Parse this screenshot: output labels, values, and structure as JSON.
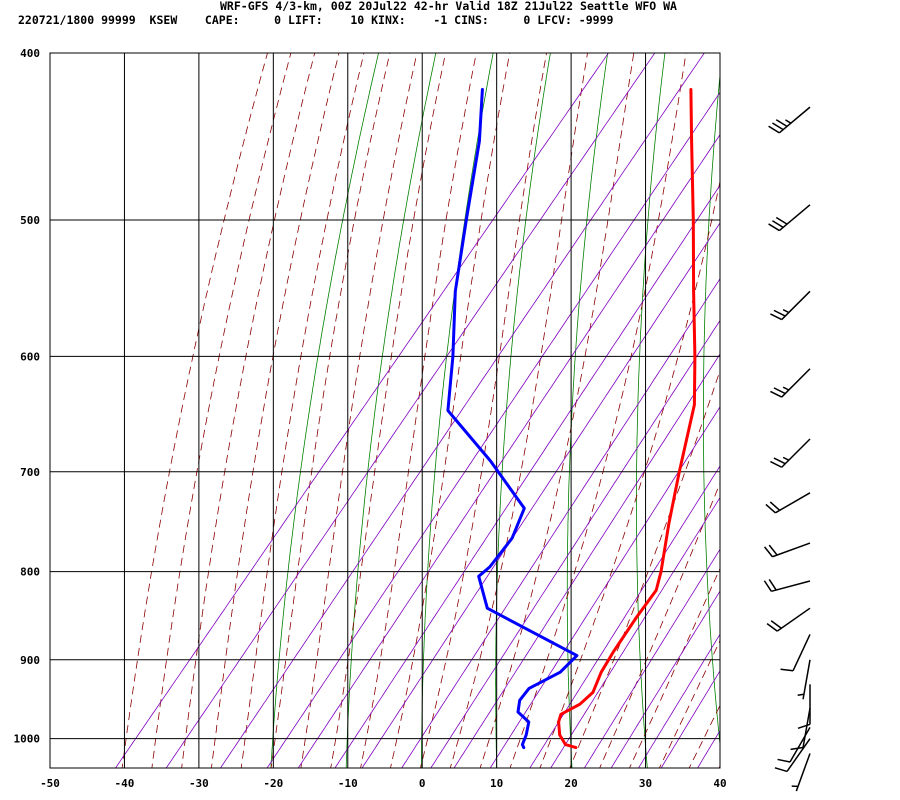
{
  "header": {
    "line1": "WRF-GFS 4/3-km, 00Z 20Jul22 42-hr Valid 18Z 21Jul22 Seattle WFO WA",
    "line2": "220721/1800 99999  KSEW    CAPE:     0 LIFT:    10 KINX:    -1 CINS:     0 LFCV: -9999"
  },
  "colors": {
    "temperature": "#ff0000",
    "dewpoint": "#0000ff",
    "dry_adiabat": "#008000",
    "moist_adiabat": "#8b0000",
    "mixing_ratio": "#8000c0",
    "grid": "#000000",
    "wind_barb": "#000000"
  },
  "chart_data": {
    "type": "skew-t sounding",
    "xlim": [
      -50,
      40
    ],
    "ylim_hpa": [
      1040,
      400
    ],
    "x_ticks": [
      -50,
      -40,
      -30,
      -20,
      -10,
      0,
      10,
      20,
      30,
      40
    ],
    "y_ticks": [
      400,
      500,
      600,
      700,
      800,
      900,
      1000
    ],
    "grid": true,
    "series": [
      {
        "kind": "temperature",
        "points": [
          {
            "p": 1012,
            "t": 18.5
          },
          {
            "p": 1008,
            "t": 16.8
          },
          {
            "p": 995,
            "t": 15.0
          },
          {
            "p": 978,
            "t": 13.5
          },
          {
            "p": 968,
            "t": 13.0
          },
          {
            "p": 955,
            "t": 14.5
          },
          {
            "p": 940,
            "t": 15.0
          },
          {
            "p": 915,
            "t": 14.0
          },
          {
            "p": 890,
            "t": 13.5
          },
          {
            "p": 850,
            "t": 13.0
          },
          {
            "p": 820,
            "t": 12.8
          },
          {
            "p": 800,
            "t": 11.5
          },
          {
            "p": 750,
            "t": 7.5
          },
          {
            "p": 700,
            "t": 3.5
          },
          {
            "p": 640,
            "t": -1.5
          },
          {
            "p": 600,
            "t": -6.5
          },
          {
            "p": 550,
            "t": -13.5
          },
          {
            "p": 500,
            "t": -21.0
          },
          {
            "p": 450,
            "t": -29.5
          },
          {
            "p": 420,
            "t": -35.0
          }
        ]
      },
      {
        "kind": "dewpoint",
        "points": [
          {
            "p": 1012,
            "t": 11.5
          },
          {
            "p": 1008,
            "t": 11.0
          },
          {
            "p": 995,
            "t": 10.5
          },
          {
            "p": 978,
            "t": 9.5
          },
          {
            "p": 965,
            "t": 7.0
          },
          {
            "p": 950,
            "t": 6.0
          },
          {
            "p": 935,
            "t": 6.0
          },
          {
            "p": 915,
            "t": 8.5
          },
          {
            "p": 895,
            "t": 9.0
          },
          {
            "p": 840,
            "t": -8.0
          },
          {
            "p": 805,
            "t": -12.5
          },
          {
            "p": 795,
            "t": -12.0
          },
          {
            "p": 765,
            "t": -12.0
          },
          {
            "p": 735,
            "t": -13.5
          },
          {
            "p": 690,
            "t": -23.0
          },
          {
            "p": 645,
            "t": -34.0
          },
          {
            "p": 600,
            "t": -39.0
          },
          {
            "p": 550,
            "t": -45.5
          },
          {
            "p": 500,
            "t": -51.5
          },
          {
            "p": 450,
            "t": -58.0
          },
          {
            "p": 420,
            "t": -63.0
          }
        ]
      }
    ],
    "wind_barbs": [
      {
        "p": 430,
        "dir": 230,
        "spd": 35
      },
      {
        "p": 490,
        "dir": 230,
        "spd": 30
      },
      {
        "p": 550,
        "dir": 225,
        "spd": 25
      },
      {
        "p": 610,
        "dir": 225,
        "spd": 25
      },
      {
        "p": 670,
        "dir": 225,
        "spd": 25
      },
      {
        "p": 720,
        "dir": 240,
        "spd": 20
      },
      {
        "p": 770,
        "dir": 250,
        "spd": 20
      },
      {
        "p": 810,
        "dir": 255,
        "spd": 20
      },
      {
        "p": 840,
        "dir": 235,
        "spd": 20
      },
      {
        "p": 870,
        "dir": 205,
        "spd": 10
      },
      {
        "p": 900,
        "dir": 190,
        "spd": 5
      },
      {
        "p": 930,
        "dir": 180,
        "spd": 10
      },
      {
        "p": 960,
        "dir": 190,
        "spd": 10
      },
      {
        "p": 985,
        "dir": 210,
        "spd": 10
      },
      {
        "p": 1000,
        "dir": 215,
        "spd": 10
      },
      {
        "p": 1020,
        "dir": 200,
        "spd": 5
      }
    ]
  }
}
